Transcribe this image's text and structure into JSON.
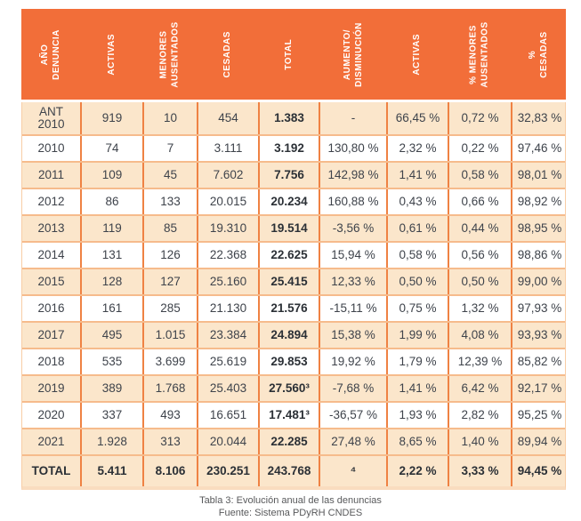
{
  "colors": {
    "header_bg": "#F26E39",
    "row_alt_bg": "#FBE6CB",
    "row_bg": "#FFFFFF",
    "vertical_border": "#EF8243",
    "horizontal_border": "#F6BB8C",
    "bottom_border": "#F9DCBF",
    "header_text": "#FFFFFF",
    "cell_text": "#3E434B"
  },
  "table": {
    "columns": [
      "AÑO\nDENUNCIA",
      "ACTIVAS",
      "MENORES\nAUSENTADOS",
      "CESADAS",
      "TOTAL",
      "AUMENTO/\nDISMINUCIÓN",
      "ACTIVAS",
      "% MENORES\nAUSENTADOS",
      "% CESADAS"
    ],
    "rows": [
      [
        "ANT\n2010",
        "919",
        "10",
        "454",
        "1.383",
        "-",
        "66,45 %",
        "0,72 %",
        "32,83 %"
      ],
      [
        "2010",
        "74",
        "7",
        "3.111",
        "3.192",
        "130,80 %",
        "2,32 %",
        "0,22 %",
        "97,46 %"
      ],
      [
        "2011",
        "109",
        "45",
        "7.602",
        "7.756",
        "142,98 %",
        "1,41 %",
        "0,58 %",
        "98,01 %"
      ],
      [
        "2012",
        "86",
        "133",
        "20.015",
        "20.234",
        "160,88 %",
        "0,43 %",
        "0,66 %",
        "98,92 %"
      ],
      [
        "2013",
        "119",
        "85",
        "19.310",
        "19.514",
        "-3,56 %",
        "0,61 %",
        "0,44 %",
        "98,95 %"
      ],
      [
        "2014",
        "131",
        "126",
        "22.368",
        "22.625",
        "15,94 %",
        "0,58 %",
        "0,56 %",
        "98,86 %"
      ],
      [
        "2015",
        "128",
        "127",
        "25.160",
        "25.415",
        "12,33 %",
        "0,50 %",
        "0,50 %",
        "99,00 %"
      ],
      [
        "2016",
        "161",
        "285",
        "21.130",
        "21.576",
        "-15,11 %",
        "0,75 %",
        "1,32 %",
        "97,93 %"
      ],
      [
        "2017",
        "495",
        "1.015",
        "23.384",
        "24.894",
        "15,38 %",
        "1,99 %",
        "4,08 %",
        "93,93 %"
      ],
      [
        "2018",
        "535",
        "3.699",
        "25.619",
        "29.853",
        "19,92 %",
        "1,79 %",
        "12,39 %",
        "85,82 %"
      ],
      [
        "2019",
        "389",
        "1.768",
        "25.403",
        "27.560³",
        "-7,68 %",
        "1,41 %",
        "6,42 %",
        "92,17 %"
      ],
      [
        "2020",
        "337",
        "493",
        "16.651",
        "17.481³",
        "-36,57 %",
        "1,93 %",
        "2,82 %",
        "95,25 %"
      ],
      [
        "2021",
        "1.928",
        "313",
        "20.044",
        "22.285",
        "27,48 %",
        "8,65 %",
        "1,40 %",
        "89,94 %"
      ]
    ],
    "total_row": [
      "TOTAL",
      "5.411",
      "8.106",
      "230.251",
      "243.768",
      "⁴",
      "2,22 %",
      "3,33 %",
      "94,45 %"
    ]
  },
  "caption": {
    "line1": "Tabla 3: Evolución anual de las denuncias",
    "line2": "Fuente: Sistema PDyRH CNDES"
  }
}
